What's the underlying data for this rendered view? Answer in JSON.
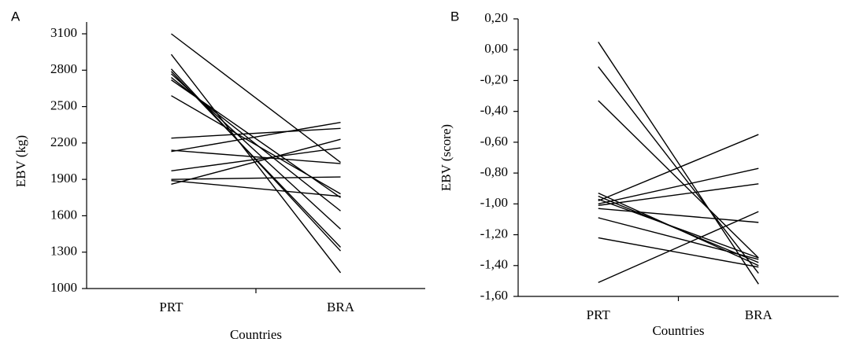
{
  "chart_data": [
    {
      "type": "line",
      "panel_label": "A",
      "y_label": "EBV (kg)",
      "x_label": "Countries",
      "categories": [
        "PRT",
        "BRA"
      ],
      "ylim": [
        1000,
        3100
      ],
      "yticks": [
        1000,
        1300,
        1600,
        1900,
        2200,
        2500,
        2800,
        3100
      ],
      "series": [
        {
          "color": "#000000",
          "values": [
            3100,
            2040
          ]
        },
        {
          "color": "#000000",
          "values": [
            2930,
            1130
          ]
        },
        {
          "color": "#000000",
          "values": [
            2810,
            1310
          ]
        },
        {
          "color": "#000000",
          "values": [
            2790,
            1340
          ]
        },
        {
          "color": "#000000",
          "values": [
            2770,
            1490
          ]
        },
        {
          "color": "#000000",
          "values": [
            2740,
            1640
          ]
        },
        {
          "color": "#000000",
          "values": [
            2720,
            1750
          ]
        },
        {
          "color": "#000000",
          "values": [
            2590,
            1780
          ]
        },
        {
          "color": "#000000",
          "values": [
            2240,
            2320
          ]
        },
        {
          "color": "#000000",
          "values": [
            2140,
            2030
          ]
        },
        {
          "color": "#000000",
          "values": [
            2130,
            2370
          ]
        },
        {
          "color": "#000000",
          "values": [
            1970,
            2160
          ]
        },
        {
          "color": "#000000",
          "values": [
            1900,
            1920
          ]
        },
        {
          "color": "#000000",
          "values": [
            1890,
            1760
          ]
        },
        {
          "color": "#000000",
          "values": [
            1860,
            2230
          ]
        }
      ]
    },
    {
      "type": "line",
      "panel_label": "B",
      "y_label": "EBV (score)",
      "x_label": "Countries",
      "categories": [
        "PRT",
        "BRA"
      ],
      "ylim": [
        -1.6,
        0.2
      ],
      "yticks": [
        {
          "value": -1.6,
          "label": "-1,60"
        },
        {
          "value": -1.4,
          "label": "-1,40"
        },
        {
          "value": -1.2,
          "label": "-1,20"
        },
        {
          "value": -1.0,
          "label": "-1,00"
        },
        {
          "value": -0.8,
          "label": "-0,80"
        },
        {
          "value": -0.6,
          "label": "-0,60"
        },
        {
          "value": -0.4,
          "label": "-0,40"
        },
        {
          "value": -0.2,
          "label": "-0,20"
        },
        {
          "value": 0,
          "label": "0,00"
        },
        {
          "value": 0.2,
          "label": "0,20"
        }
      ],
      "series": [
        {
          "color": "#000000",
          "values": [
            0.05,
            -1.52
          ]
        },
        {
          "color": "#000000",
          "values": [
            -0.11,
            -1.45
          ]
        },
        {
          "color": "#000000",
          "values": [
            -0.33,
            -1.35
          ]
        },
        {
          "color": "#000000",
          "values": [
            -0.93,
            -1.4
          ]
        },
        {
          "color": "#000000",
          "values": [
            -0.95,
            -1.38
          ]
        },
        {
          "color": "#000000",
          "values": [
            -0.97,
            -1.35
          ]
        },
        {
          "color": "#000000",
          "values": [
            -0.98,
            -0.55
          ]
        },
        {
          "color": "#000000",
          "values": [
            -1.0,
            -0.77
          ]
        },
        {
          "color": "#000000",
          "values": [
            -1.01,
            -0.87
          ]
        },
        {
          "color": "#000000",
          "values": [
            -1.03,
            -1.12
          ]
        },
        {
          "color": "#000000",
          "values": [
            -1.09,
            -1.36
          ]
        },
        {
          "color": "#000000",
          "values": [
            -1.22,
            -1.41
          ]
        },
        {
          "color": "#000000",
          "values": [
            -1.51,
            -1.05
          ]
        }
      ]
    }
  ]
}
